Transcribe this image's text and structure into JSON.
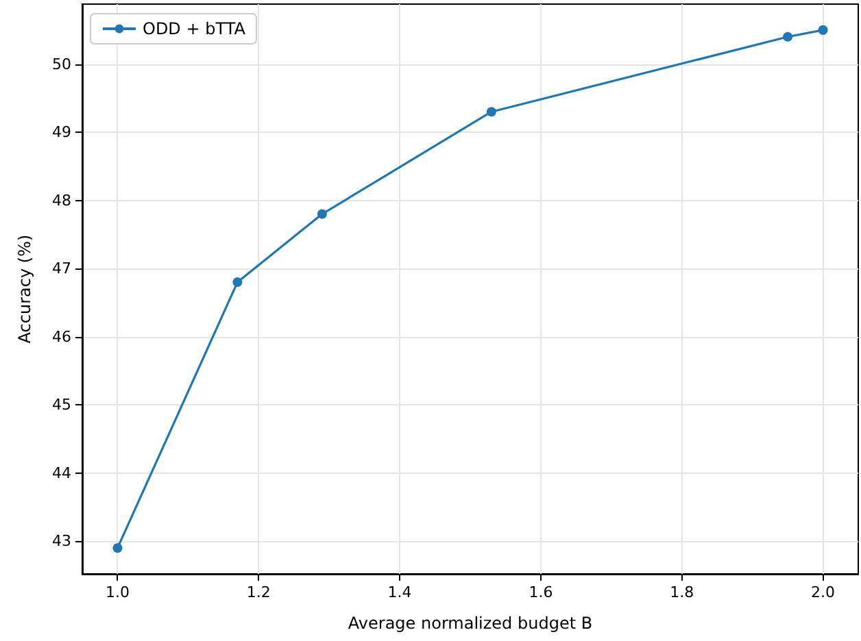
{
  "chart_data": {
    "type": "line",
    "xlabel": "Average normalized budget B",
    "ylabel": "Accuracy (%)",
    "x": [
      1.0,
      1.17,
      1.29,
      1.53,
      1.95,
      2.0
    ],
    "series": [
      {
        "name": "ODD + bTTA",
        "color": "#1f77b4",
        "values": [
          42.9,
          46.8,
          47.8,
          49.3,
          50.4,
          50.5
        ]
      }
    ],
    "xlim": [
      0.95,
      2.05
    ],
    "xticks": [
      {
        "value": 1,
        "label": "1.0"
      },
      1.2,
      1.4,
      1.6,
      1.8,
      {
        "value": 2,
        "label": "2.0"
      }
    ],
    "ylim": [
      42.52,
      50.88
    ],
    "yticks": [
      43,
      44,
      45,
      46,
      47,
      48,
      49,
      50
    ],
    "grid": true,
    "legend": "top left",
    "marker": "circle",
    "line_style": "solid"
  }
}
